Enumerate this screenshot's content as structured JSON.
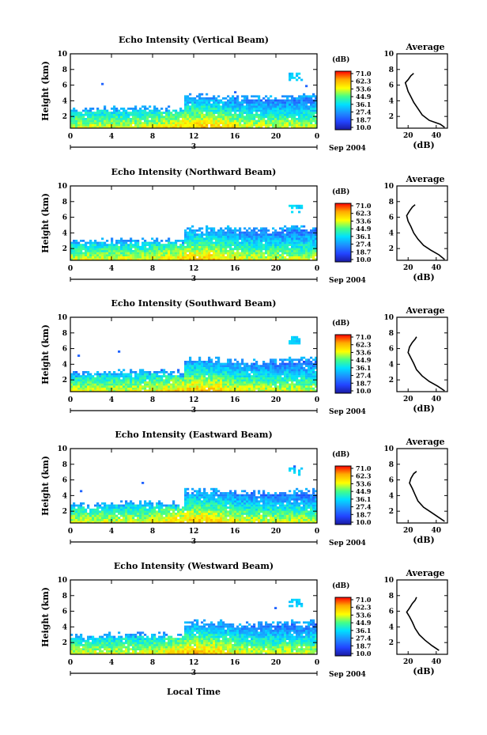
{
  "figure": {
    "xlabel_bottom": "Local Time",
    "date_label": "Sep 2004",
    "day_label": "3"
  },
  "colorbar": {
    "unit": "(dB)",
    "labels": [
      "71.0",
      "62.3",
      "53.6",
      "44.9",
      "36.1",
      "27.4",
      "18.7",
      "10.0"
    ],
    "colors": [
      "#ff0000",
      "#ffaa00",
      "#ffff00",
      "#44ff88",
      "#00e0ff",
      "#1e8cff",
      "#2244ff",
      "#1a1aa0"
    ]
  },
  "chart_data": [
    {
      "type": "heatmap",
      "title": "Echo Intensity (Vertical Beam)",
      "ylabel": "Height (km)",
      "xlabel": "",
      "x_ticks": [
        "0",
        "4",
        "8",
        "12",
        "16",
        "20",
        "0"
      ],
      "y_ticks": [
        "2",
        "4",
        "6",
        "8",
        "10"
      ],
      "xlim": [
        0,
        24
      ],
      "ylim": [
        0.5,
        10
      ],
      "colorscale_db": [
        10.0,
        71.0
      ],
      "profile": {
        "title": "Average",
        "xlabel": "(dB)",
        "x_ticks": [
          "20",
          "40"
        ],
        "xlim": [
          12,
          48
        ],
        "ylim": [
          0.5,
          10
        ],
        "points": [
          [
            46,
            0.6
          ],
          [
            43,
            1.0
          ],
          [
            35,
            1.5
          ],
          [
            30,
            2.2
          ],
          [
            27,
            3.0
          ],
          [
            24,
            3.8
          ],
          [
            22,
            4.5
          ],
          [
            20,
            5.2
          ],
          [
            19,
            5.8
          ],
          [
            18,
            6.3
          ],
          [
            20,
            6.7
          ],
          [
            22,
            7.2
          ],
          [
            24,
            7.5
          ]
        ]
      }
    },
    {
      "type": "heatmap",
      "title": "Echo Intensity (Northward Beam)",
      "ylabel": "Height (km)",
      "xlabel": "",
      "x_ticks": [
        "0",
        "4",
        "8",
        "12",
        "16",
        "20",
        "0"
      ],
      "y_ticks": [
        "2",
        "4",
        "6",
        "8",
        "10"
      ],
      "xlim": [
        0,
        24
      ],
      "ylim": [
        0.5,
        10
      ],
      "colorscale_db": [
        10.0,
        71.0
      ],
      "profile": {
        "title": "Average",
        "xlabel": "(dB)",
        "x_ticks": [
          "20",
          "40"
        ],
        "xlim": [
          12,
          48
        ],
        "ylim": [
          0.5,
          10
        ],
        "points": [
          [
            46,
            0.6
          ],
          [
            42,
            1.2
          ],
          [
            36,
            1.8
          ],
          [
            31,
            2.4
          ],
          [
            27,
            3.2
          ],
          [
            24,
            4.0
          ],
          [
            22,
            4.8
          ],
          [
            20,
            5.5
          ],
          [
            19,
            6.2
          ],
          [
            21,
            6.8
          ],
          [
            23,
            7.3
          ],
          [
            25,
            7.6
          ]
        ]
      }
    },
    {
      "type": "heatmap",
      "title": "Echo Intensity (Southward Beam)",
      "ylabel": "Height (km)",
      "xlabel": "",
      "x_ticks": [
        "0",
        "4",
        "8",
        "12",
        "16",
        "20",
        "0"
      ],
      "y_ticks": [
        "2",
        "4",
        "6",
        "8",
        "10"
      ],
      "xlim": [
        0,
        24
      ],
      "ylim": [
        0.5,
        10
      ],
      "colorscale_db": [
        10.0,
        71.0
      ],
      "profile": {
        "title": "Average",
        "xlabel": "(dB)",
        "x_ticks": [
          "20",
          "40"
        ],
        "xlim": [
          12,
          48
        ],
        "ylim": [
          0.5,
          10
        ],
        "points": [
          [
            46,
            0.6
          ],
          [
            41,
            1.2
          ],
          [
            35,
            1.8
          ],
          [
            30,
            2.5
          ],
          [
            26,
            3.3
          ],
          [
            24,
            4.1
          ],
          [
            22,
            4.8
          ],
          [
            20,
            5.5
          ],
          [
            21,
            6.2
          ],
          [
            23,
            6.8
          ],
          [
            25,
            7.2
          ],
          [
            26,
            7.5
          ]
        ]
      }
    },
    {
      "type": "heatmap",
      "title": "Echo Intensity (Eastward Beam)",
      "ylabel": "Height (km)",
      "xlabel": "",
      "x_ticks": [
        "0",
        "4",
        "8",
        "12",
        "16",
        "20",
        "0"
      ],
      "y_ticks": [
        "2",
        "4",
        "6",
        "8",
        "10"
      ],
      "xlim": [
        0,
        24
      ],
      "ylim": [
        0.5,
        10
      ],
      "colorscale_db": [
        10.0,
        71.0
      ],
      "profile": {
        "title": "Average",
        "xlabel": "(dB)",
        "x_ticks": [
          "20",
          "40"
        ],
        "xlim": [
          12,
          48
        ],
        "ylim": [
          0.5,
          10
        ],
        "points": [
          [
            46,
            0.7
          ],
          [
            41,
            1.3
          ],
          [
            36,
            1.9
          ],
          [
            31,
            2.5
          ],
          [
            27,
            3.3
          ],
          [
            25,
            4.1
          ],
          [
            23,
            4.9
          ],
          [
            21,
            5.6
          ],
          [
            22,
            6.2
          ],
          [
            24,
            6.8
          ],
          [
            26,
            7.1
          ]
        ]
      }
    },
    {
      "type": "heatmap",
      "title": "Echo Intensity (Westward Beam)",
      "ylabel": "Height (km)",
      "xlabel": "",
      "x_ticks": [
        "0",
        "4",
        "8",
        "12",
        "16",
        "20",
        "0"
      ],
      "y_ticks": [
        "2",
        "4",
        "6",
        "8",
        "10"
      ],
      "xlim": [
        0,
        24
      ],
      "ylim": [
        0.5,
        10
      ],
      "colorscale_db": [
        10.0,
        71.0
      ],
      "profile": {
        "title": "Average",
        "xlabel": "(dB)",
        "x_ticks": [
          "20",
          "40"
        ],
        "xlim": [
          12,
          48
        ],
        "ylim": [
          0.5,
          10
        ],
        "points": [
          [
            42,
            1.0
          ],
          [
            37,
            1.6
          ],
          [
            32,
            2.3
          ],
          [
            28,
            3.0
          ],
          [
            25,
            3.8
          ],
          [
            23,
            4.6
          ],
          [
            21,
            5.3
          ],
          [
            19,
            5.9
          ],
          [
            21,
            6.4
          ],
          [
            23,
            7.0
          ],
          [
            25,
            7.4
          ],
          [
            26,
            7.8
          ]
        ]
      }
    }
  ]
}
